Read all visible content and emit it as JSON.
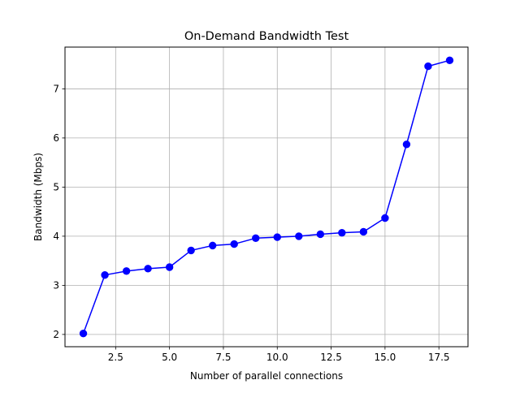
{
  "chart_data": {
    "type": "line",
    "title": "On-Demand Bandwidth Test",
    "xlabel": "Number of parallel connections",
    "ylabel": "Bandwidth (Mbps)",
    "xlim": [
      0.15,
      18.85
    ],
    "ylim": [
      1.75,
      7.85
    ],
    "xticks": [
      2.5,
      5.0,
      7.5,
      10.0,
      12.5,
      15.0,
      17.5
    ],
    "xtick_labels": [
      "2.5",
      "5.0",
      "7.5",
      "10.0",
      "12.5",
      "15.0",
      "17.5"
    ],
    "yticks": [
      2,
      3,
      4,
      5,
      6,
      7
    ],
    "ytick_labels": [
      "2",
      "3",
      "4",
      "5",
      "6",
      "7"
    ],
    "grid": true,
    "legend": "none",
    "series": [
      {
        "color": "#0000ff",
        "marker": "circle",
        "x": [
          1,
          2,
          3,
          4,
          5,
          6,
          7,
          8,
          9,
          10,
          11,
          12,
          13,
          14,
          15,
          16,
          17,
          18
        ],
        "y": [
          2.02,
          3.21,
          3.29,
          3.34,
          3.37,
          3.71,
          3.81,
          3.84,
          3.96,
          3.98,
          4.0,
          4.04,
          4.07,
          4.09,
          4.37,
          5.87,
          7.46,
          7.58
        ]
      }
    ]
  }
}
